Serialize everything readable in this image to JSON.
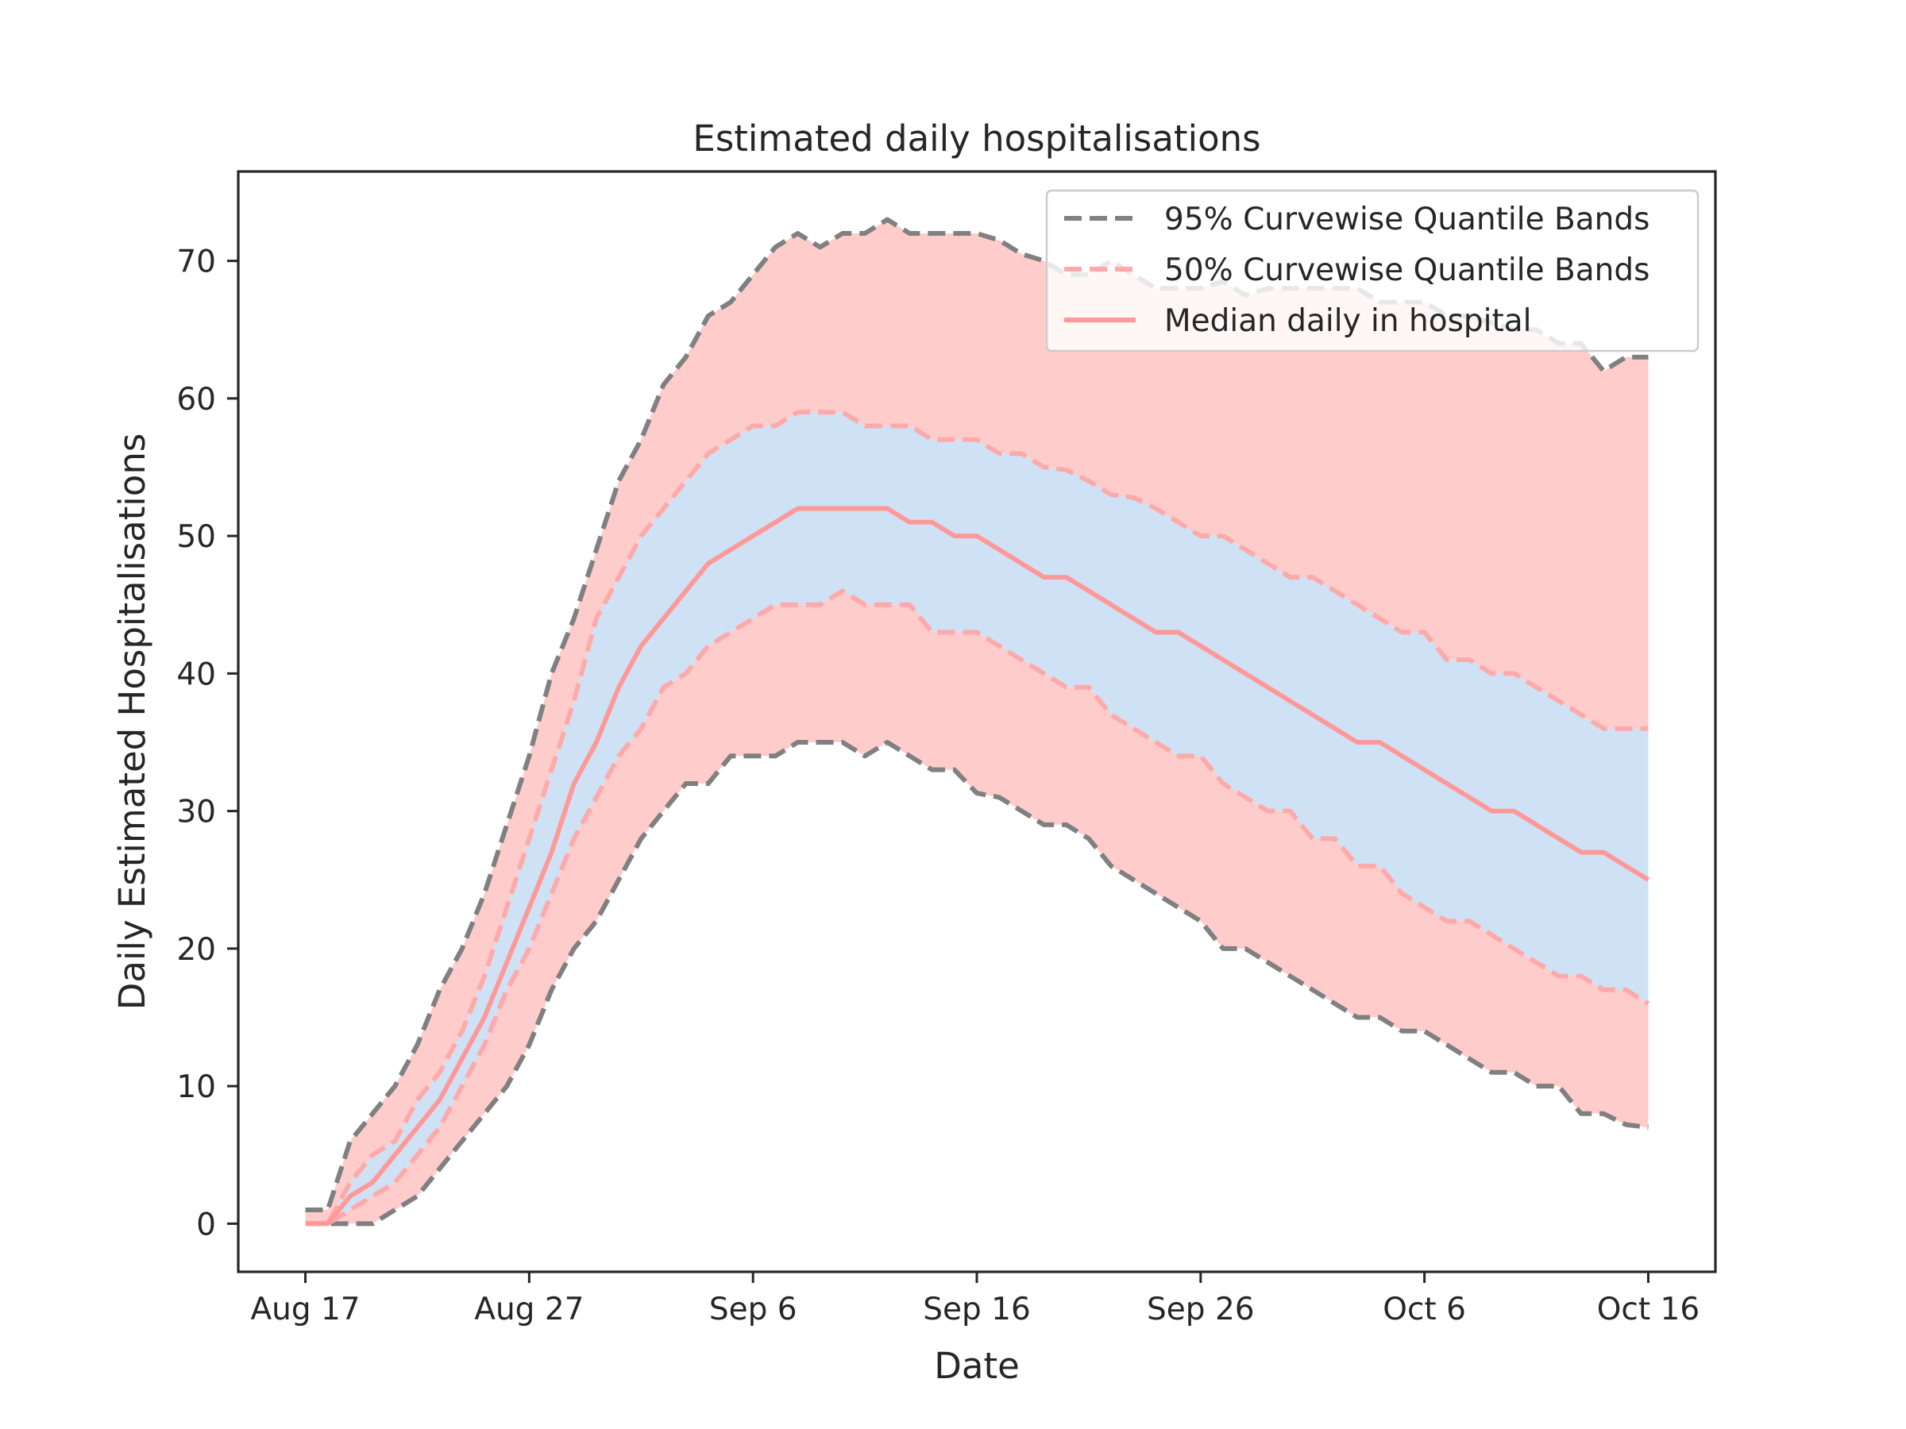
{
  "chart_data": {
    "type": "line",
    "title": "Estimated daily hospitalisations",
    "xlabel": "Date",
    "ylabel": "Daily Estimated Hospitalisations",
    "xlim": [
      "2020-08-14",
      "2020-10-19"
    ],
    "ylim": [
      -3.5,
      76.5
    ],
    "x_ticks": [
      "Aug 17",
      "Aug 27",
      "Sep 6",
      "Sep 16",
      "Sep 26",
      "Oct 6",
      "Oct 16"
    ],
    "x_tick_dates": [
      "2020-08-17",
      "2020-08-27",
      "2020-09-06",
      "2020-09-16",
      "2020-09-26",
      "2020-10-06",
      "2020-10-16"
    ],
    "y_ticks": [
      0,
      10,
      20,
      30,
      40,
      50,
      60,
      70
    ],
    "grid": false,
    "legend_position": "top-right",
    "x": [
      "2020-08-17",
      "2020-08-18",
      "2020-08-19",
      "2020-08-20",
      "2020-08-21",
      "2020-08-22",
      "2020-08-23",
      "2020-08-24",
      "2020-08-25",
      "2020-08-26",
      "2020-08-27",
      "2020-08-28",
      "2020-08-29",
      "2020-08-30",
      "2020-08-31",
      "2020-09-01",
      "2020-09-02",
      "2020-09-03",
      "2020-09-04",
      "2020-09-05",
      "2020-09-06",
      "2020-09-07",
      "2020-09-08",
      "2020-09-09",
      "2020-09-10",
      "2020-09-11",
      "2020-09-12",
      "2020-09-13",
      "2020-09-14",
      "2020-09-15",
      "2020-09-16",
      "2020-09-17",
      "2020-09-18",
      "2020-09-19",
      "2020-09-20",
      "2020-09-21",
      "2020-09-22",
      "2020-09-23",
      "2020-09-24",
      "2020-09-25",
      "2020-09-26",
      "2020-09-27",
      "2020-09-28",
      "2020-09-29",
      "2020-09-30",
      "2020-10-01",
      "2020-10-02",
      "2020-10-03",
      "2020-10-04",
      "2020-10-05",
      "2020-10-06",
      "2020-10-07",
      "2020-10-08",
      "2020-10-09",
      "2020-10-10",
      "2020-10-11",
      "2020-10-12",
      "2020-10-13",
      "2020-10-14",
      "2020-10-15",
      "2020-10-16"
    ],
    "series": [
      {
        "name": "95% Curvewise Quantile Bands",
        "kind": "band",
        "color": "#808080",
        "fill": "#ffcccc",
        "upper": [
          1,
          1,
          6,
          8,
          10,
          13,
          17,
          20,
          24,
          29,
          34,
          40,
          44,
          49,
          54,
          57,
          61,
          63,
          66,
          67,
          69,
          71,
          72,
          71,
          72,
          72,
          73,
          72,
          72,
          72,
          72,
          71.5,
          70.5,
          70,
          69,
          69,
          70,
          69,
          68,
          68,
          68,
          68.5,
          67.5,
          68,
          68,
          68,
          68,
          68,
          67,
          67,
          67,
          66,
          66,
          65.5,
          65,
          65,
          64,
          64,
          62,
          63,
          63
        ],
        "lower": [
          0,
          0,
          0,
          0,
          1,
          2,
          4,
          6,
          8,
          10,
          13,
          17,
          20,
          22,
          25,
          28,
          30,
          32,
          32,
          34,
          34,
          34,
          35,
          35,
          35,
          34,
          35,
          34,
          33,
          33,
          31.3,
          31,
          30,
          29,
          29,
          28,
          26,
          25,
          24,
          23,
          22,
          20,
          20,
          19,
          18,
          17,
          16,
          15,
          15,
          14,
          14,
          13,
          12,
          11,
          11,
          10,
          10,
          8,
          8,
          7.2,
          7
        ]
      },
      {
        "name": "50% Curvewise Quantile Bands",
        "kind": "band",
        "color": "#ffaaaa",
        "fill": "#cfe2f5",
        "upper": [
          0,
          0,
          3,
          5,
          6,
          9,
          11,
          14,
          18,
          23,
          28,
          33,
          38,
          44,
          47,
          50,
          52,
          54,
          56,
          57,
          58,
          58,
          59,
          59,
          59,
          58,
          58,
          58,
          57,
          57,
          57,
          56,
          56,
          55,
          54.8,
          54,
          53,
          52.8,
          52,
          51,
          50,
          50,
          49,
          48,
          47,
          47,
          46,
          45,
          44,
          43,
          43,
          41,
          41,
          40,
          40,
          39,
          38,
          37,
          36,
          36,
          36
        ],
        "lower": [
          0,
          0,
          1,
          2,
          3,
          5,
          7,
          10,
          13,
          17,
          20,
          24,
          28,
          31,
          34,
          36,
          39,
          40,
          42,
          43,
          44,
          45,
          45,
          45,
          46,
          45,
          45,
          45,
          43,
          43,
          43,
          42,
          41,
          40,
          39,
          39,
          37,
          36,
          35,
          34,
          34,
          32,
          31,
          30,
          30,
          28,
          28,
          26,
          26,
          24,
          23,
          22,
          22,
          21,
          20,
          19,
          18,
          18,
          17,
          17,
          16
        ]
      },
      {
        "name": "Median daily in hospital",
        "kind": "line",
        "color": "#ff9999",
        "values": [
          0,
          0,
          2,
          3,
          5,
          7,
          9,
          12,
          15,
          19,
          23,
          27,
          32,
          35,
          39,
          42,
          44,
          46,
          48,
          49,
          50,
          51,
          52,
          52,
          52,
          52,
          52,
          51,
          51,
          50,
          50,
          49,
          48,
          47,
          47,
          46,
          45,
          44,
          43,
          43,
          42,
          41,
          40,
          39,
          38,
          37,
          36,
          35,
          35,
          34,
          33,
          32,
          31,
          30,
          30,
          29,
          28,
          27,
          27,
          26,
          25
        ]
      }
    ]
  }
}
